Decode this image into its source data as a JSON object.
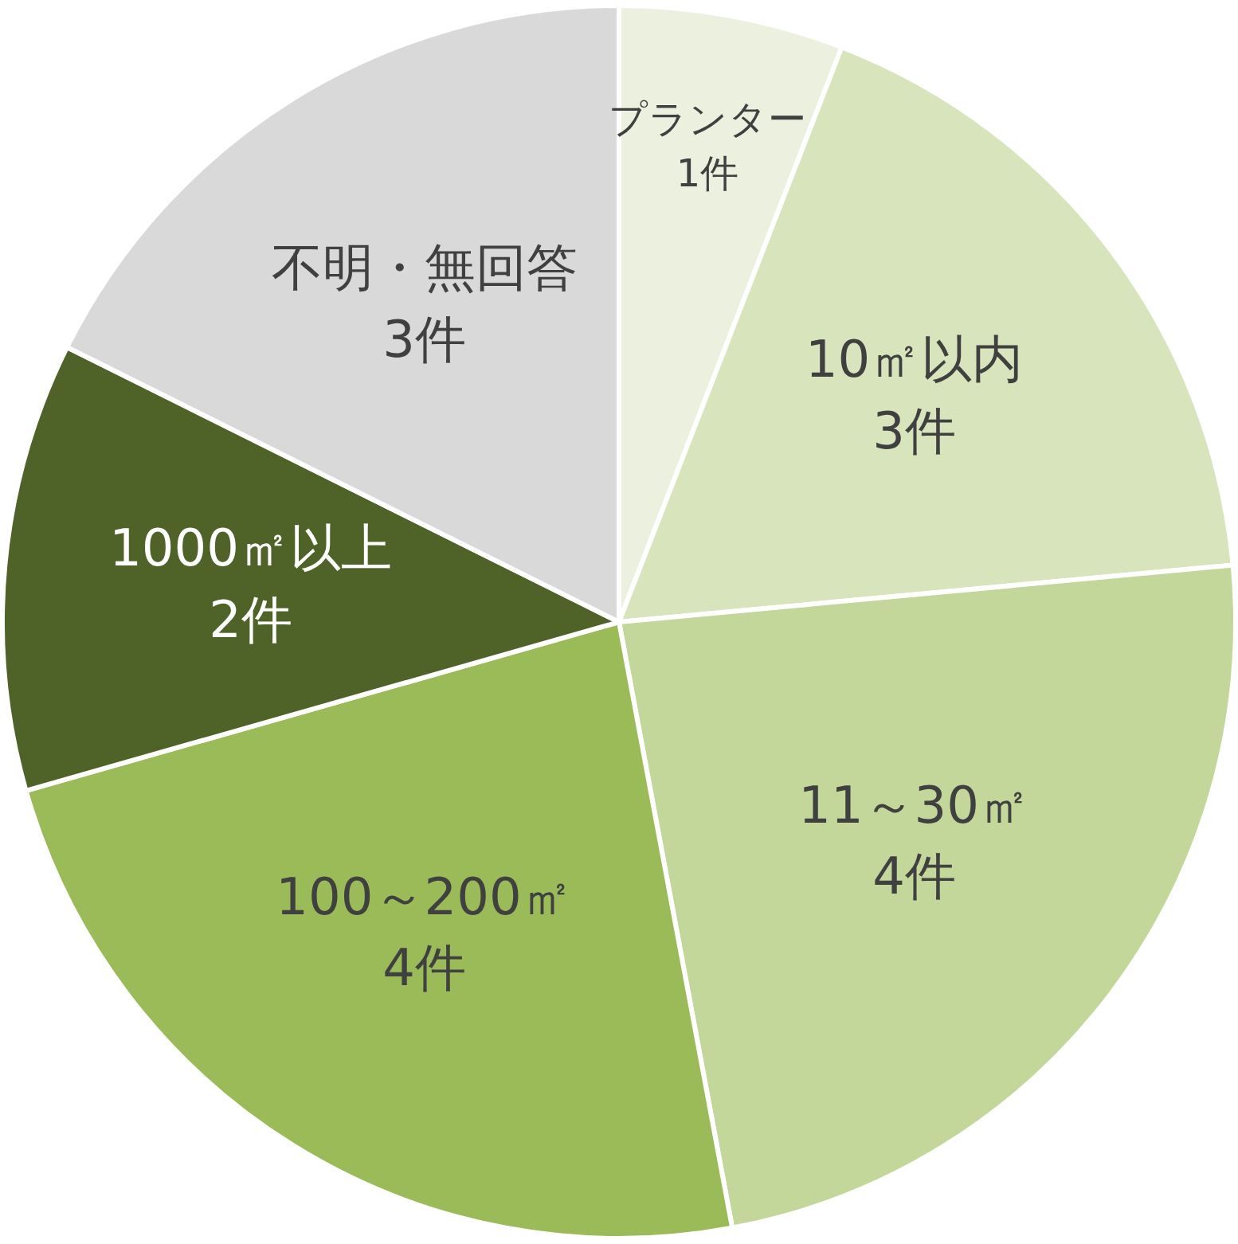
{
  "chart_data": {
    "type": "pie",
    "categories": [
      "プランター",
      "10㎡以内",
      "11～30㎡",
      "100～200㎡",
      "1000㎡以上",
      "不明・無回答"
    ],
    "values": [
      1,
      3,
      4,
      4,
      2,
      3
    ],
    "value_labels": [
      "1件",
      "3件",
      "4件",
      "4件",
      "2件",
      "3件"
    ],
    "colors": [
      "#ebf1de",
      "#d8e4bc",
      "#c4d79b",
      "#9bbb59",
      "#4f6228",
      "#d9d9d9"
    ],
    "legend": false
  }
}
